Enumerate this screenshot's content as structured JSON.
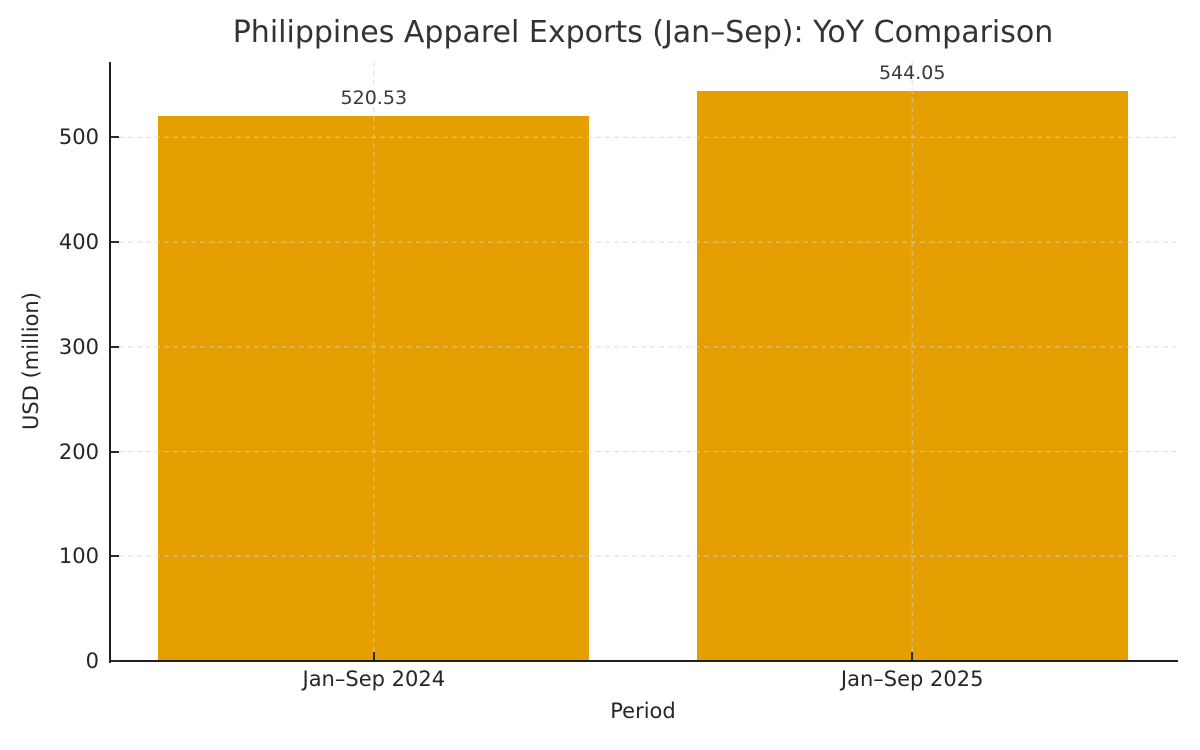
{
  "chart_data": {
    "type": "bar",
    "title": "Philippines Apparel Exports (Jan–Sep): YoY Comparison",
    "xlabel": "Period",
    "ylabel": "USD (million)",
    "categories": [
      "Jan–Sep 2024",
      "Jan–Sep 2025"
    ],
    "values": [
      520.53,
      544.05
    ],
    "value_labels": [
      "520.53",
      "544.05"
    ],
    "yticks": [
      0,
      100,
      200,
      300,
      400,
      500
    ],
    "ylim": [
      0,
      572
    ],
    "bar_color": "#E69F00",
    "grid": {
      "visible": true,
      "style": "dashed",
      "color": "#d3d3d3",
      "drawn_over_bars": true
    },
    "legend": "none",
    "tick_direction": "in",
    "text_color": "#262626",
    "spine_color": "#1f1f1f"
  }
}
